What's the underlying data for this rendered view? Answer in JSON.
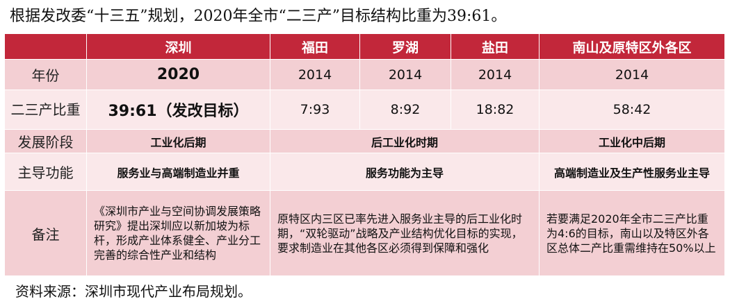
{
  "title": "根据发改委“十三五”规划，2020年全市“二三产”目标结构比重为39:61。",
  "source": "资料来源：深圳市现代产业布局规划。",
  "table": {
    "headers": [
      "",
      "深圳",
      "福田",
      "罗湖",
      "盐田",
      "南山及原特区外各区"
    ],
    "rows": {
      "year": {
        "label": "年份",
        "values": [
          "2020",
          "2014",
          "2014",
          "2014",
          "2014"
        ]
      },
      "ratio": {
        "label": "二三产比重",
        "values": [
          "39:61（发改目标）",
          "7:93",
          "8:92",
          "18:82",
          "58:42"
        ]
      },
      "stage": {
        "label": "发展阶段",
        "values": [
          "工业化后期",
          "后工业化时期",
          "工业化中后期"
        ]
      },
      "function": {
        "label": "主导功能",
        "values": [
          "服务业与高端制造业并重",
          "服务功能为主导",
          "高端制造业及生产性服务业主导"
        ]
      },
      "note": {
        "label": "备注",
        "values": [
          "《深圳市产业与空间协调发展策略研究》提出深圳应以新加坡为标杆，形成产业体系健全、产业分工完善的综合性产业和结构",
          "原特区内三区已率先进入服务业主导的后工业化时期，“双轮驱动”战略及产业结构优化目标的实现，要求制造业在其他各区必须得到保障和强化",
          "若要满足2020年全市二三产比重为4:6的目标，南山以及特区外各区总体二产比重需维持在50%以上"
        ]
      }
    }
  },
  "colors": {
    "header_bg": "#c2273a",
    "row_dark": "#f3cfd3",
    "row_light": "#fae8ea"
  }
}
